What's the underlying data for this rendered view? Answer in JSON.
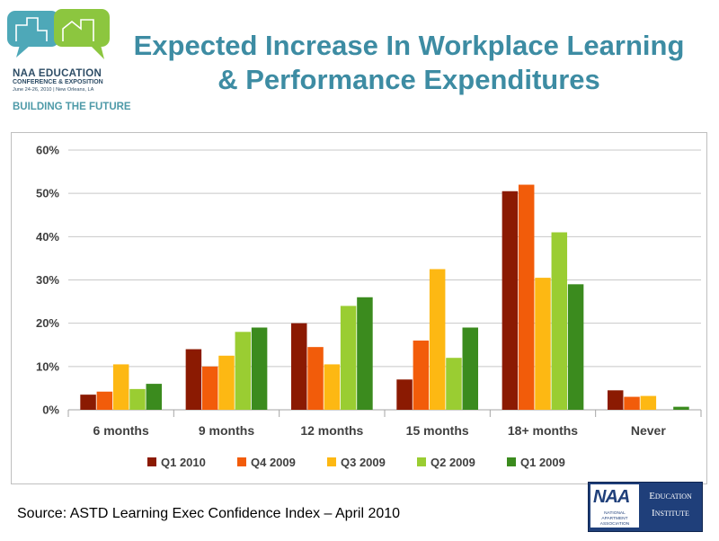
{
  "logo": {
    "org": "NAA EDUCATION",
    "sub": "CONFERENCE & EXPOSITION",
    "date": "June 24-26, 2010 | New Orleans, LA",
    "tagline": "BUILDING THE FUTURE"
  },
  "title": {
    "line1": "Expected Increase In Workplace Learning",
    "line2": "& Performance Expenditures"
  },
  "chart_data": {
    "type": "bar",
    "categories": [
      "6 months",
      "9 months",
      "12 months",
      "15 months",
      "18+ months",
      "Never"
    ],
    "series": [
      {
        "name": "Q1 2010",
        "color": "#8b1a02",
        "values": [
          3.5,
          14,
          20,
          7,
          50.5,
          4.5
        ]
      },
      {
        "name": "Q4 2009",
        "color": "#f25c0a",
        "values": [
          4.2,
          10,
          14.5,
          16,
          52,
          3
        ]
      },
      {
        "name": "Q3 2009",
        "color": "#fdb813",
        "values": [
          10.5,
          12.5,
          10.5,
          32.5,
          30.5,
          3.2
        ]
      },
      {
        "name": "Q2 2009",
        "color": "#9acd32",
        "values": [
          4.8,
          18,
          24,
          12,
          41,
          0
        ]
      },
      {
        "name": "Q1 2009",
        "color": "#3b8b1e",
        "values": [
          6,
          19,
          26,
          19,
          29,
          0.7
        ]
      }
    ],
    "yticks": [
      "0%",
      "10%",
      "20%",
      "30%",
      "40%",
      "50%",
      "60%"
    ],
    "ylim": [
      0,
      60
    ],
    "grid": true,
    "legend": "bottom"
  },
  "footer": {
    "source": "Source: ASTD Learning Exec Confidence Index – April 2010",
    "naa_letters": "NAA",
    "naa_name": "NATIONAL APARTMENT ASSOCIATION",
    "naa_line1": "Education",
    "naa_line2": "Institute"
  }
}
